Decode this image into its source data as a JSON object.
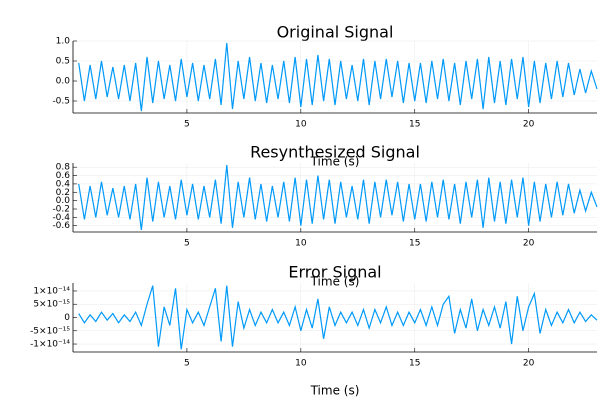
{
  "chart_data": [
    {
      "type": "line",
      "title": "Original Signal",
      "x_label": "Time (s)",
      "xlim": [
        0,
        23
      ],
      "xticks": [
        5,
        10,
        15,
        20
      ],
      "ylim": [
        -0.8,
        1.0
      ],
      "yticks": [
        {
          "value": 1.0,
          "label": "1.0"
        },
        0.5,
        {
          "value": 0,
          "label": "0.0"
        },
        -0.5
      ],
      "grid": true,
      "x": [
        0.25,
        0.5,
        0.75,
        1,
        1.25,
        1.5,
        1.75,
        2,
        2.25,
        2.5,
        2.75,
        3,
        3.25,
        3.5,
        3.75,
        4,
        4.25,
        4.5,
        4.75,
        5,
        5.25,
        5.5,
        5.75,
        6,
        6.25,
        6.5,
        6.75,
        7,
        7.25,
        7.5,
        7.75,
        8,
        8.25,
        8.5,
        8.75,
        9,
        9.25,
        9.5,
        9.75,
        10,
        10.25,
        10.5,
        10.75,
        11,
        11.25,
        11.5,
        11.75,
        12,
        12.25,
        12.5,
        12.75,
        13,
        13.25,
        13.5,
        13.75,
        14,
        14.25,
        14.5,
        14.75,
        15,
        15.25,
        15.5,
        15.75,
        16,
        16.25,
        16.5,
        16.75,
        17,
        17.25,
        17.5,
        17.75,
        18,
        18.25,
        18.5,
        18.75,
        19,
        19.25,
        19.5,
        19.75,
        20,
        20.25,
        20.5,
        20.75,
        21,
        21.25,
        21.5,
        21.75,
        22,
        22.25,
        22.5,
        22.75,
        23
      ],
      "series": [
        {
          "color": "#009af9",
          "values": [
            0.45,
            -0.5,
            0.4,
            -0.45,
            0.5,
            -0.4,
            0.35,
            -0.45,
            0.4,
            -0.5,
            0.45,
            -0.75,
            0.6,
            -0.55,
            0.5,
            -0.45,
            0.4,
            -0.5,
            0.55,
            -0.4,
            0.45,
            -0.5,
            0.4,
            -0.45,
            0.55,
            -0.6,
            0.95,
            -0.7,
            0.5,
            -0.45,
            0.6,
            -0.5,
            0.45,
            -0.55,
            0.4,
            -0.45,
            0.5,
            -0.55,
            0.6,
            -0.65,
            0.55,
            -0.6,
            0.65,
            -0.5,
            0.55,
            -0.6,
            0.5,
            -0.45,
            0.4,
            -0.5,
            0.55,
            -0.6,
            0.5,
            -0.45,
            0.55,
            -0.4,
            0.5,
            -0.55,
            0.45,
            -0.5,
            0.45,
            -0.55,
            0.5,
            -0.45,
            0.55,
            -0.5,
            0.45,
            -0.6,
            0.5,
            -0.45,
            0.55,
            -0.7,
            0.6,
            -0.55,
            0.5,
            -0.6,
            0.55,
            -0.45,
            0.6,
            -0.65,
            0.5,
            -0.55,
            0.45,
            -0.45,
            0.5,
            -0.4,
            0.45,
            -0.35,
            0.3,
            -0.3,
            0.25,
            -0.2
          ]
        }
      ]
    },
    {
      "type": "line",
      "title": "Resynthesized Signal",
      "x_label": "Time (s)",
      "xlim": [
        0,
        23
      ],
      "xticks": [
        5,
        10,
        15,
        20
      ],
      "ylim": [
        -0.75,
        0.9
      ],
      "yticks": [
        0.8,
        0.6,
        0.4,
        0.2,
        {
          "value": 0,
          "label": "0.0"
        },
        -0.2,
        -0.4,
        -0.6
      ],
      "grid": true,
      "x": [
        0.25,
        0.5,
        0.75,
        1,
        1.25,
        1.5,
        1.75,
        2,
        2.25,
        2.5,
        2.75,
        3,
        3.25,
        3.5,
        3.75,
        4,
        4.25,
        4.5,
        4.75,
        5,
        5.25,
        5.5,
        5.75,
        6,
        6.25,
        6.5,
        6.75,
        7,
        7.25,
        7.5,
        7.75,
        8,
        8.25,
        8.5,
        8.75,
        9,
        9.25,
        9.5,
        9.75,
        10,
        10.25,
        10.5,
        10.75,
        11,
        11.25,
        11.5,
        11.75,
        12,
        12.25,
        12.5,
        12.75,
        13,
        13.25,
        13.5,
        13.75,
        14,
        14.25,
        14.5,
        14.75,
        15,
        15.25,
        15.5,
        15.75,
        16,
        16.25,
        16.5,
        16.75,
        17,
        17.25,
        17.5,
        17.75,
        18,
        18.25,
        18.5,
        18.75,
        19,
        19.25,
        19.5,
        19.75,
        20,
        20.25,
        20.5,
        20.75,
        21,
        21.25,
        21.5,
        21.75,
        22,
        22.25,
        22.5,
        22.75,
        23
      ],
      "series": [
        {
          "color": "#009af9",
          "values": [
            0.4,
            -0.45,
            0.35,
            -0.4,
            0.45,
            -0.35,
            0.3,
            -0.4,
            0.35,
            -0.45,
            0.4,
            -0.7,
            0.55,
            -0.5,
            0.45,
            -0.4,
            0.35,
            -0.45,
            0.5,
            -0.35,
            0.4,
            -0.45,
            0.35,
            -0.4,
            0.5,
            -0.55,
            0.85,
            -0.65,
            0.45,
            -0.4,
            0.55,
            -0.45,
            0.4,
            -0.5,
            0.35,
            -0.4,
            0.45,
            -0.5,
            0.55,
            -0.6,
            0.5,
            -0.55,
            0.6,
            -0.45,
            0.5,
            -0.55,
            0.45,
            -0.4,
            0.35,
            -0.45,
            0.5,
            -0.55,
            0.45,
            -0.4,
            0.5,
            -0.35,
            0.45,
            -0.5,
            0.4,
            -0.45,
            0.4,
            -0.5,
            0.45,
            -0.4,
            0.5,
            -0.45,
            0.4,
            -0.55,
            0.45,
            -0.4,
            0.5,
            -0.65,
            0.55,
            -0.5,
            0.45,
            -0.55,
            0.5,
            -0.4,
            0.55,
            -0.6,
            0.45,
            -0.5,
            0.4,
            -0.4,
            0.45,
            -0.35,
            0.4,
            -0.3,
            0.25,
            -0.25,
            0.2,
            -0.15
          ]
        }
      ]
    },
    {
      "type": "line",
      "title": "Error Signal",
      "x_label": "Time (s)",
      "xlim": [
        0,
        23
      ],
      "xticks": [
        5,
        10,
        15,
        20
      ],
      "ylim": [
        -1.3e-14,
        1.3e-14
      ],
      "yticks": [
        {
          "value": 1e-14,
          "label": "1×10⁻¹⁴"
        },
        {
          "value": 5e-15,
          "label": "5×10⁻¹⁵"
        },
        0,
        {
          "value": -5e-15,
          "label": "-5×10⁻¹⁵"
        },
        {
          "value": -1e-14,
          "label": "-1×10⁻¹⁴"
        }
      ],
      "grid": true,
      "x": [
        0.25,
        0.5,
        0.75,
        1,
        1.25,
        1.5,
        1.75,
        2,
        2.25,
        2.5,
        2.75,
        3,
        3.25,
        3.5,
        3.75,
        4,
        4.25,
        4.5,
        4.75,
        5,
        5.25,
        5.5,
        5.75,
        6,
        6.25,
        6.5,
        6.75,
        7,
        7.25,
        7.5,
        7.75,
        8,
        8.25,
        8.5,
        8.75,
        9,
        9.25,
        9.5,
        9.75,
        10,
        10.25,
        10.5,
        10.75,
        11,
        11.25,
        11.5,
        11.75,
        12,
        12.25,
        12.5,
        12.75,
        13,
        13.25,
        13.5,
        13.75,
        14,
        14.25,
        14.5,
        14.75,
        15,
        15.25,
        15.5,
        15.75,
        16,
        16.25,
        16.5,
        16.75,
        17,
        17.25,
        17.5,
        17.75,
        18,
        18.25,
        18.5,
        18.75,
        19,
        19.25,
        19.5,
        19.75,
        20,
        20.25,
        20.5,
        20.75,
        21,
        21.25,
        21.5,
        21.75,
        22,
        22.25,
        22.5,
        22.75,
        23
      ],
      "series": [
        {
          "color": "#009af9",
          "values": [
            1.5e-15,
            -2e-15,
            1e-15,
            -1.5e-15,
            2e-15,
            -1e-15,
            1.5e-15,
            -2e-15,
            1e-15,
            -1.5e-15,
            2e-15,
            -3e-15,
            5e-15,
            1.2e-14,
            -1.1e-14,
            4e-15,
            -3e-15,
            1.1e-14,
            -1.2e-14,
            3e-15,
            -2e-15,
            2e-15,
            -3e-15,
            4e-15,
            1.1e-14,
            -9e-15,
            1.2e-14,
            -1.1e-14,
            6e-15,
            -4e-15,
            3e-15,
            -3e-15,
            2e-15,
            -2e-15,
            3e-15,
            -2e-15,
            2e-15,
            -3e-15,
            4e-15,
            -5e-15,
            3e-15,
            -4e-15,
            7e-15,
            -8e-15,
            4e-15,
            -3e-15,
            2e-15,
            -2e-15,
            2e-15,
            -3e-15,
            3e-15,
            -4e-15,
            3e-15,
            -2e-15,
            4e-15,
            -3e-15,
            2e-15,
            -3e-15,
            2e-15,
            -2e-15,
            3e-15,
            -3e-15,
            4e-15,
            -3e-15,
            5e-15,
            8e-15,
            -6e-15,
            3e-15,
            -4e-15,
            7e-15,
            -5e-15,
            3e-15,
            -3e-15,
            4e-15,
            -4e-15,
            6e-15,
            -1e-14,
            8e-15,
            -5e-15,
            4e-15,
            9e-15,
            -6e-15,
            3e-15,
            -3e-15,
            2e-15,
            -2e-15,
            3e-15,
            -2e-15,
            2e-15,
            -1.5e-15,
            1e-15,
            -1e-15
          ]
        }
      ]
    }
  ]
}
